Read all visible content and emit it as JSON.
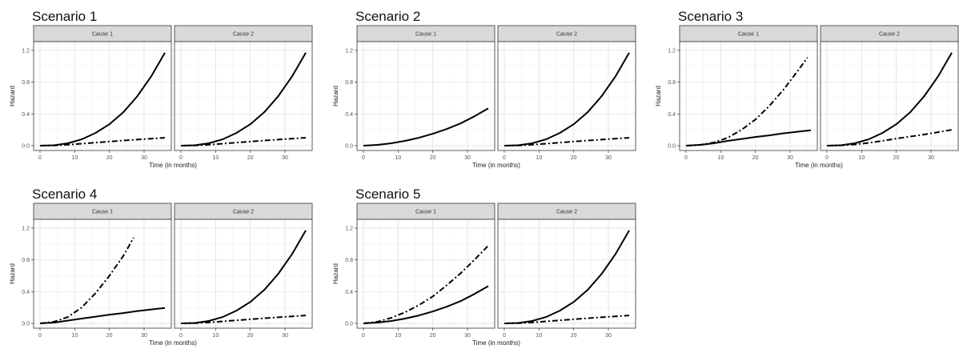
{
  "chart_data": [
    {
      "type": "line",
      "title": "Scenario 1",
      "xlabel": "Time (in months)",
      "ylabel": "Hazard",
      "xlim": [
        0,
        36
      ],
      "ylim": [
        0,
        1.25
      ],
      "xticks": [
        0,
        10,
        20,
        30
      ],
      "yticks": [
        0.0,
        0.4,
        0.8,
        1.2
      ],
      "grid": true,
      "legend": "none",
      "panels": [
        {
          "strip": "Cause 1",
          "series": [
            {
              "style": "solid",
              "x": [
                0,
                4,
                8,
                12,
                16,
                20,
                24,
                28,
                32,
                36
              ],
              "values": [
                0,
                0.005,
                0.03,
                0.08,
                0.16,
                0.27,
                0.42,
                0.62,
                0.87,
                1.17
              ]
            },
            {
              "style": "dashdot",
              "x": [
                0,
                4,
                8,
                12,
                16,
                20,
                24,
                28,
                32,
                36
              ],
              "values": [
                0,
                0.003,
                0.012,
                0.025,
                0.038,
                0.052,
                0.065,
                0.077,
                0.089,
                0.1
              ]
            }
          ]
        },
        {
          "strip": "Cause 2",
          "series": [
            {
              "style": "solid",
              "x": [
                0,
                4,
                8,
                12,
                16,
                20,
                24,
                28,
                32,
                36
              ],
              "values": [
                0,
                0.005,
                0.03,
                0.08,
                0.16,
                0.27,
                0.42,
                0.62,
                0.87,
                1.17
              ]
            },
            {
              "style": "dashdot",
              "x": [
                0,
                4,
                8,
                12,
                16,
                20,
                24,
                28,
                32,
                36
              ],
              "values": [
                0,
                0.003,
                0.012,
                0.025,
                0.038,
                0.052,
                0.065,
                0.077,
                0.089,
                0.1
              ]
            }
          ]
        }
      ]
    },
    {
      "type": "line",
      "title": "Scenario 2",
      "xlabel": "Time (in months)",
      "ylabel": "Hazard",
      "xlim": [
        0,
        36
      ],
      "ylim": [
        0,
        1.25
      ],
      "xticks": [
        0,
        10,
        20,
        30
      ],
      "yticks": [
        0.0,
        0.4,
        0.8,
        1.2
      ],
      "grid": true,
      "legend": "none",
      "panels": [
        {
          "strip": "Cause 1",
          "series": [
            {
              "style": "solid",
              "x": [
                0,
                4,
                8,
                12,
                16,
                20,
                24,
                28,
                32,
                36
              ],
              "values": [
                0,
                0.01,
                0.03,
                0.06,
                0.1,
                0.15,
                0.21,
                0.28,
                0.37,
                0.47
              ]
            }
          ]
        },
        {
          "strip": "Cause 2",
          "series": [
            {
              "style": "solid",
              "x": [
                0,
                4,
                8,
                12,
                16,
                20,
                24,
                28,
                32,
                36
              ],
              "values": [
                0,
                0.005,
                0.03,
                0.08,
                0.16,
                0.27,
                0.42,
                0.62,
                0.87,
                1.17
              ]
            },
            {
              "style": "dashdot",
              "x": [
                0,
                4,
                8,
                12,
                16,
                20,
                24,
                28,
                32,
                36
              ],
              "values": [
                0,
                0.003,
                0.012,
                0.025,
                0.038,
                0.052,
                0.065,
                0.077,
                0.089,
                0.1
              ]
            }
          ]
        }
      ]
    },
    {
      "type": "line",
      "title": "Scenario 3",
      "xlabel": "Time (in months)",
      "ylabel": "Hazard",
      "xlim": [
        0,
        36
      ],
      "ylim": [
        0,
        1.25
      ],
      "xticks": [
        0,
        10,
        20,
        30
      ],
      "yticks": [
        0.0,
        0.4,
        0.8,
        1.2
      ],
      "grid": true,
      "legend": "none",
      "panels": [
        {
          "strip": "Cause 1",
          "series": [
            {
              "style": "solid",
              "x": [
                0,
                4,
                8,
                12,
                16,
                20,
                24,
                28,
                32,
                36
              ],
              "values": [
                0,
                0.01,
                0.03,
                0.06,
                0.085,
                0.11,
                0.13,
                0.155,
                0.175,
                0.195
              ]
            },
            {
              "style": "dashdot",
              "x": [
                0,
                4,
                8,
                12,
                16,
                20,
                24,
                28,
                32,
                35
              ],
              "values": [
                0,
                0.01,
                0.04,
                0.1,
                0.2,
                0.33,
                0.5,
                0.7,
                0.93,
                1.11
              ]
            }
          ]
        },
        {
          "strip": "Cause 2",
          "series": [
            {
              "style": "solid",
              "x": [
                0,
                4,
                8,
                12,
                16,
                20,
                24,
                28,
                32,
                36
              ],
              "values": [
                0,
                0.005,
                0.03,
                0.08,
                0.16,
                0.27,
                0.42,
                0.62,
                0.87,
                1.17
              ]
            },
            {
              "style": "dashdot",
              "x": [
                0,
                4,
                8,
                12,
                16,
                20,
                24,
                28,
                32,
                36
              ],
              "values": [
                0,
                0.004,
                0.015,
                0.035,
                0.06,
                0.09,
                0.115,
                0.14,
                0.17,
                0.2
              ]
            }
          ]
        }
      ]
    },
    {
      "type": "line",
      "title": "Scenario 4",
      "xlabel": "Time (in months)",
      "ylabel": "Hazard",
      "xlim": [
        0,
        36
      ],
      "ylim": [
        0,
        1.25
      ],
      "xticks": [
        0,
        10,
        20,
        30
      ],
      "yticks": [
        0.0,
        0.4,
        0.8,
        1.2
      ],
      "grid": true,
      "legend": "none",
      "panels": [
        {
          "strip": "Cause 1",
          "series": [
            {
              "style": "solid",
              "x": [
                0,
                4,
                8,
                12,
                16,
                20,
                24,
                28,
                32,
                36
              ],
              "values": [
                0,
                0.01,
                0.035,
                0.06,
                0.085,
                0.11,
                0.13,
                0.155,
                0.175,
                0.195
              ]
            },
            {
              "style": "dashdot",
              "x": [
                0,
                4,
                8,
                12,
                16,
                20,
                24,
                27
              ],
              "values": [
                0,
                0.02,
                0.08,
                0.2,
                0.38,
                0.6,
                0.85,
                1.08
              ]
            }
          ]
        },
        {
          "strip": "Cause 2",
          "series": [
            {
              "style": "solid",
              "x": [
                0,
                4,
                8,
                12,
                16,
                20,
                24,
                28,
                32,
                36
              ],
              "values": [
                0,
                0.005,
                0.03,
                0.08,
                0.16,
                0.27,
                0.42,
                0.62,
                0.87,
                1.17
              ]
            },
            {
              "style": "dashdot",
              "x": [
                0,
                4,
                8,
                12,
                16,
                20,
                24,
                28,
                32,
                36
              ],
              "values": [
                0,
                0.003,
                0.012,
                0.025,
                0.038,
                0.052,
                0.065,
                0.077,
                0.089,
                0.1
              ]
            }
          ]
        }
      ]
    },
    {
      "type": "line",
      "title": "Scenario 5",
      "xlabel": "Time (in months)",
      "ylabel": "Hazard",
      "xlim": [
        0,
        36
      ],
      "ylim": [
        0,
        1.25
      ],
      "xticks": [
        0,
        10,
        20,
        30
      ],
      "yticks": [
        0.0,
        0.4,
        0.8,
        1.2
      ],
      "grid": true,
      "legend": "none",
      "panels": [
        {
          "strip": "Cause 1",
          "series": [
            {
              "style": "solid",
              "x": [
                0,
                4,
                8,
                12,
                16,
                20,
                24,
                28,
                32,
                36
              ],
              "values": [
                0,
                0.01,
                0.03,
                0.06,
                0.1,
                0.15,
                0.21,
                0.28,
                0.37,
                0.47
              ]
            },
            {
              "style": "dashdot",
              "x": [
                0,
                4,
                8,
                12,
                16,
                20,
                24,
                28,
                32,
                36
              ],
              "values": [
                0,
                0.02,
                0.07,
                0.14,
                0.23,
                0.34,
                0.48,
                0.63,
                0.8,
                0.98
              ]
            }
          ]
        },
        {
          "strip": "Cause 2",
          "series": [
            {
              "style": "solid",
              "x": [
                0,
                4,
                8,
                12,
                16,
                20,
                24,
                28,
                32,
                36
              ],
              "values": [
                0,
                0.005,
                0.03,
                0.08,
                0.16,
                0.27,
                0.42,
                0.62,
                0.87,
                1.17
              ]
            },
            {
              "style": "dashdot",
              "x": [
                0,
                4,
                8,
                12,
                16,
                20,
                24,
                28,
                32,
                36
              ],
              "values": [
                0,
                0.003,
                0.012,
                0.025,
                0.038,
                0.052,
                0.065,
                0.077,
                0.089,
                0.1
              ]
            }
          ]
        }
      ]
    }
  ]
}
